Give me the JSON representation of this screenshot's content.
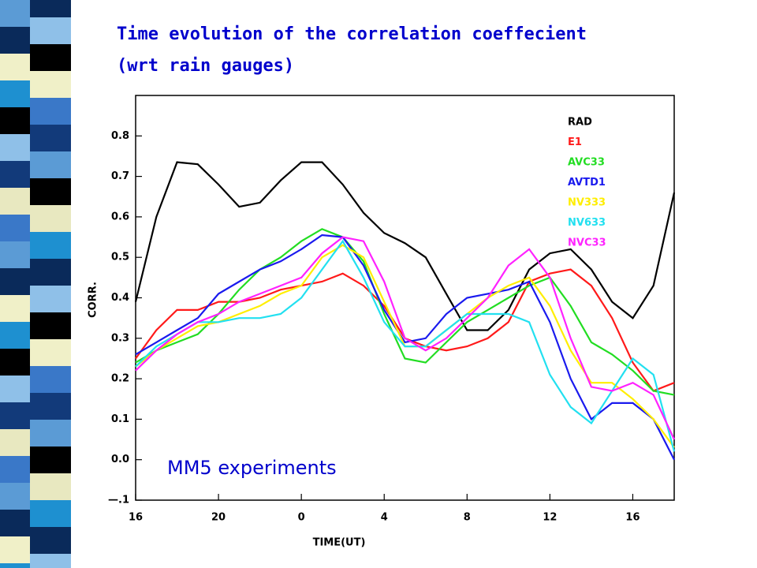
{
  "chart_data": {
    "type": "line",
    "title": [
      "Time evolution of the correlation coeffecient",
      "(wrt rain gauges)"
    ],
    "x_label": "TIME(UT)",
    "y_label": "CORR.",
    "annotation": "MM5 experiments",
    "x": [
      0,
      1,
      2,
      3,
      4,
      5,
      6,
      7,
      8,
      9,
      10,
      11,
      12,
      13,
      14,
      15,
      16,
      17,
      18,
      19,
      20,
      21,
      22,
      23,
      24,
      25,
      26
    ],
    "xlim": [
      0,
      26
    ],
    "xticks": [
      {
        "value": 0,
        "label": "16"
      },
      {
        "value": 4,
        "label": "20"
      },
      {
        "value": 8,
        "label": "0"
      },
      {
        "value": 12,
        "label": "4"
      },
      {
        "value": 16,
        "label": "8"
      },
      {
        "value": 20,
        "label": "12"
      },
      {
        "value": 24,
        "label": "16"
      }
    ],
    "ylim": [
      -0.1,
      0.9
    ],
    "yticks": [
      {
        "value": -0.1,
        "label": "—.1"
      },
      {
        "value": 0,
        "label": "0.0"
      },
      0.1,
      0.2,
      0.3,
      0.4,
      0.5,
      0.6,
      0.7,
      0.8
    ],
    "series": [
      {
        "name": "RAD",
        "color": "#000000",
        "values": [
          0.39,
          0.6,
          0.735,
          0.73,
          0.68,
          0.625,
          0.635,
          0.69,
          0.735,
          0.735,
          0.68,
          0.61,
          0.56,
          0.535,
          0.5,
          0.41,
          0.32,
          0.32,
          0.37,
          0.47,
          0.51,
          0.52,
          0.47,
          0.39,
          0.35,
          0.43,
          0.66
        ]
      },
      {
        "name": "E1",
        "color": "#ff1a1a",
        "values": [
          0.25,
          0.32,
          0.37,
          0.37,
          0.39,
          0.39,
          0.4,
          0.42,
          0.43,
          0.44,
          0.46,
          0.43,
          0.38,
          0.3,
          0.28,
          0.27,
          0.28,
          0.3,
          0.34,
          0.44,
          0.46,
          0.47,
          0.43,
          0.35,
          0.24,
          0.17,
          0.19
        ]
      },
      {
        "name": "AVC33",
        "color": "#22dd22",
        "values": [
          0.24,
          0.27,
          0.29,
          0.31,
          0.36,
          0.42,
          0.47,
          0.5,
          0.54,
          0.57,
          0.55,
          0.49,
          0.36,
          0.25,
          0.24,
          0.29,
          0.34,
          0.37,
          0.4,
          0.43,
          0.45,
          0.38,
          0.29,
          0.26,
          0.22,
          0.17,
          0.16
        ]
      },
      {
        "name": "AVTD1",
        "color": "#1a1aee",
        "values": [
          0.26,
          0.29,
          0.32,
          0.35,
          0.41,
          0.44,
          0.47,
          0.49,
          0.52,
          0.555,
          0.55,
          0.48,
          0.37,
          0.29,
          0.3,
          0.36,
          0.4,
          0.41,
          0.42,
          0.44,
          0.34,
          0.2,
          0.1,
          0.14,
          0.14,
          0.1,
          0.0
        ]
      },
      {
        "name": "NV333",
        "color": "#ffee00",
        "values": [
          0.23,
          0.27,
          0.3,
          0.33,
          0.34,
          0.36,
          0.38,
          0.41,
          0.43,
          0.5,
          0.53,
          0.5,
          0.39,
          0.28,
          0.28,
          0.32,
          0.36,
          0.4,
          0.43,
          0.45,
          0.38,
          0.27,
          0.19,
          0.19,
          0.15,
          0.1,
          0.03
        ]
      },
      {
        "name": "NV633",
        "color": "#22e0f0",
        "values": [
          0.23,
          0.28,
          0.31,
          0.34,
          0.34,
          0.35,
          0.35,
          0.36,
          0.4,
          0.47,
          0.54,
          0.45,
          0.34,
          0.28,
          0.28,
          0.32,
          0.36,
          0.36,
          0.36,
          0.34,
          0.21,
          0.13,
          0.09,
          0.17,
          0.25,
          0.21,
          0.02
        ]
      },
      {
        "name": "NVC33",
        "color": "#ff22ff",
        "values": [
          0.22,
          0.27,
          0.31,
          0.34,
          0.36,
          0.39,
          0.41,
          0.43,
          0.45,
          0.51,
          0.55,
          0.54,
          0.44,
          0.3,
          0.27,
          0.3,
          0.35,
          0.4,
          0.48,
          0.52,
          0.45,
          0.3,
          0.18,
          0.17,
          0.19,
          0.16,
          0.05
        ]
      }
    ]
  }
}
